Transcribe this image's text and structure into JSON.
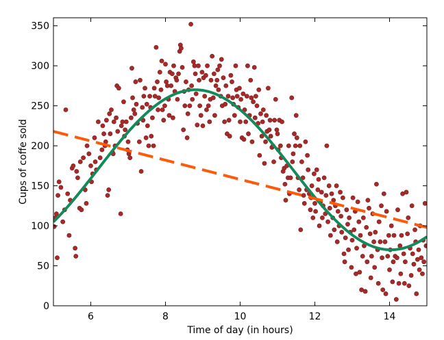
{
  "chart_data": {
    "type": "scatter",
    "title": "",
    "xlabel": "Time of day (in hours)",
    "ylabel": "Cups of coffe sold",
    "xlim": [
      5,
      15
    ],
    "ylim": [
      0,
      360
    ],
    "x_ticks": [
      6,
      8,
      10,
      12,
      14
    ],
    "y_ticks": [
      0,
      50,
      100,
      150,
      200,
      250,
      300,
      350
    ],
    "grid": false,
    "legend": "none",
    "scatter_points": [
      [
        5.02,
        99
      ],
      [
        5.05,
        110
      ],
      [
        5.08,
        115
      ],
      [
        5.1,
        60
      ],
      [
        5.12,
        138
      ],
      [
        5.15,
        155
      ],
      [
        5.2,
        148
      ],
      [
        5.25,
        105
      ],
      [
        5.3,
        120
      ],
      [
        5.33,
        245
      ],
      [
        5.38,
        140
      ],
      [
        5.42,
        88
      ],
      [
        5.45,
        132
      ],
      [
        5.5,
        172
      ],
      [
        5.53,
        175
      ],
      [
        5.58,
        72
      ],
      [
        5.6,
        62
      ],
      [
        5.62,
        168
      ],
      [
        5.65,
        160
      ],
      [
        5.7,
        122
      ],
      [
        5.72,
        180
      ],
      [
        5.75,
        120
      ],
      [
        5.8,
        185
      ],
      [
        5.85,
        145
      ],
      [
        5.88,
        128
      ],
      [
        5.9,
        200
      ],
      [
        5.95,
        190
      ],
      [
        6.0,
        175
      ],
      [
        6.02,
        155
      ],
      [
        6.05,
        165
      ],
      [
        6.1,
        210
      ],
      [
        6.12,
        180
      ],
      [
        6.15,
        170
      ],
      [
        6.2,
        230
      ],
      [
        6.25,
        185
      ],
      [
        6.3,
        195
      ],
      [
        6.32,
        225
      ],
      [
        6.35,
        215
      ],
      [
        6.38,
        200
      ],
      [
        6.4,
        205
      ],
      [
        6.42,
        232
      ],
      [
        6.45,
        138
      ],
      [
        6.48,
        145
      ],
      [
        6.5,
        240
      ],
      [
        6.52,
        215
      ],
      [
        6.55,
        245
      ],
      [
        6.58,
        192
      ],
      [
        6.6,
        190
      ],
      [
        6.62,
        230
      ],
      [
        6.65,
        200
      ],
      [
        6.68,
        235
      ],
      [
        6.7,
        275
      ],
      [
        6.72,
        218
      ],
      [
        6.75,
        272
      ],
      [
        6.8,
        115
      ],
      [
        6.82,
        225
      ],
      [
        6.85,
        230
      ],
      [
        6.88,
        255
      ],
      [
        6.9,
        212
      ],
      [
        6.92,
        220
      ],
      [
        6.95,
        230
      ],
      [
        6.98,
        195
      ],
      [
        7.0,
        205
      ],
      [
        7.02,
        190
      ],
      [
        7.05,
        185
      ],
      [
        7.08,
        235
      ],
      [
        7.1,
        297
      ],
      [
        7.12,
        260
      ],
      [
        7.15,
        245
      ],
      [
        7.18,
        240
      ],
      [
        7.2,
        280
      ],
      [
        7.22,
        252
      ],
      [
        7.25,
        228
      ],
      [
        7.3,
        205
      ],
      [
        7.32,
        282
      ],
      [
        7.35,
        168
      ],
      [
        7.38,
        248
      ],
      [
        7.4,
        232
      ],
      [
        7.42,
        262
      ],
      [
        7.45,
        272
      ],
      [
        7.48,
        210
      ],
      [
        7.5,
        252
      ],
      [
        7.52,
        225
      ],
      [
        7.55,
        200
      ],
      [
        7.58,
        262
      ],
      [
        7.6,
        248
      ],
      [
        7.62,
        212
      ],
      [
        7.65,
        235
      ],
      [
        7.68,
        200
      ],
      [
        7.7,
        272
      ],
      [
        7.72,
        262
      ],
      [
        7.75,
        323
      ],
      [
        7.78,
        280
      ],
      [
        7.8,
        245
      ],
      [
        7.82,
        260
      ],
      [
        7.85,
        292
      ],
      [
        7.88,
        270
      ],
      [
        7.9,
        306
      ],
      [
        7.92,
        245
      ],
      [
        7.95,
        232
      ],
      [
        7.98,
        250
      ],
      [
        8.0,
        302
      ],
      [
        8.02,
        280
      ],
      [
        8.05,
        275
      ],
      [
        8.08,
        258
      ],
      [
        8.1,
        238
      ],
      [
        8.12,
        292
      ],
      [
        8.15,
        275
      ],
      [
        8.18,
        290
      ],
      [
        8.2,
        235
      ],
      [
        8.22,
        300
      ],
      [
        8.25,
        268
      ],
      [
        8.28,
        285
      ],
      [
        8.3,
        282
      ],
      [
        8.32,
        258
      ],
      [
        8.35,
        290
      ],
      [
        8.38,
        318
      ],
      [
        8.4,
        326
      ],
      [
        8.42,
        322
      ],
      [
        8.45,
        298
      ],
      [
        8.48,
        220
      ],
      [
        8.5,
        268
      ],
      [
        8.52,
        250
      ],
      [
        8.55,
        280
      ],
      [
        8.58,
        210
      ],
      [
        8.6,
        240
      ],
      [
        8.62,
        270
      ],
      [
        8.65,
        250
      ],
      [
        8.68,
        352
      ],
      [
        8.7,
        275
      ],
      [
        8.72,
        258
      ],
      [
        8.75,
        305
      ],
      [
        8.78,
        300
      ],
      [
        8.8,
        290
      ],
      [
        8.82,
        265
      ],
      [
        8.85,
        226
      ],
      [
        8.88,
        300
      ],
      [
        8.9,
        282
      ],
      [
        8.92,
        250
      ],
      [
        8.95,
        238
      ],
      [
        8.98,
        292
      ],
      [
        9.0,
        225
      ],
      [
        9.02,
        285
      ],
      [
        9.05,
        262
      ],
      [
        9.08,
        288
      ],
      [
        9.1,
        245
      ],
      [
        9.12,
        300
      ],
      [
        9.15,
        250
      ],
      [
        9.18,
        230
      ],
      [
        9.2,
        258
      ],
      [
        9.22,
        282
      ],
      [
        9.25,
        312
      ],
      [
        9.28,
        260
      ],
      [
        9.3,
        290
      ],
      [
        9.32,
        238
      ],
      [
        9.35,
        275
      ],
      [
        9.38,
        282
      ],
      [
        9.4,
        295
      ],
      [
        9.42,
        270
      ],
      [
        9.45,
        300
      ],
      [
        9.48,
        262
      ],
      [
        9.5,
        308
      ],
      [
        9.52,
        250
      ],
      [
        9.55,
        285
      ],
      [
        9.58,
        230
      ],
      [
        9.6,
        252
      ],
      [
        9.62,
        275
      ],
      [
        9.65,
        215
      ],
      [
        9.68,
        262
      ],
      [
        9.7,
        232
      ],
      [
        9.72,
        212
      ],
      [
        9.75,
        288
      ],
      [
        9.78,
        280
      ],
      [
        9.8,
        260
      ],
      [
        9.82,
        252
      ],
      [
        9.85,
        238
      ],
      [
        9.88,
        300
      ],
      [
        9.9,
        270
      ],
      [
        9.92,
        262
      ],
      [
        9.95,
        248
      ],
      [
        9.98,
        272
      ],
      [
        10.0,
        230
      ],
      [
        10.02,
        258
      ],
      [
        10.05,
        210
      ],
      [
        10.08,
        265
      ],
      [
        10.1,
        208
      ],
      [
        10.12,
        245
      ],
      [
        10.15,
        230
      ],
      [
        10.18,
        262
      ],
      [
        10.2,
        300
      ],
      [
        10.22,
        215
      ],
      [
        10.25,
        238
      ],
      [
        10.28,
        282
      ],
      [
        10.3,
        260
      ],
      [
        10.32,
        205
      ],
      [
        10.35,
        255
      ],
      [
        10.38,
        298
      ],
      [
        10.4,
        235
      ],
      [
        10.42,
        262
      ],
      [
        10.45,
        250
      ],
      [
        10.48,
        228
      ],
      [
        10.5,
        270
      ],
      [
        10.52,
        188
      ],
      [
        10.55,
        240
      ],
      [
        10.58,
        212
      ],
      [
        10.6,
        230
      ],
      [
        10.62,
        245
      ],
      [
        10.65,
        178
      ],
      [
        10.68,
        205
      ],
      [
        10.7,
        238
      ],
      [
        10.72,
        218
      ],
      [
        10.75,
        272
      ],
      [
        10.78,
        220
      ],
      [
        10.8,
        232
      ],
      [
        10.82,
        212
      ],
      [
        10.85,
        198
      ],
      [
        10.88,
        200
      ],
      [
        10.9,
        180
      ],
      [
        10.92,
        232
      ],
      [
        10.95,
        258
      ],
      [
        10.98,
        220
      ],
      [
        11.0,
        215
      ],
      [
        11.02,
        195
      ],
      [
        11.05,
        232
      ],
      [
        11.08,
        200
      ],
      [
        11.1,
        185
      ],
      [
        11.12,
        230
      ],
      [
        11.15,
        168
      ],
      [
        11.18,
        172
      ],
      [
        11.2,
        152
      ],
      [
        11.22,
        132
      ],
      [
        11.25,
        175
      ],
      [
        11.28,
        160
      ],
      [
        11.3,
        200
      ],
      [
        11.32,
        140
      ],
      [
        11.35,
        160
      ],
      [
        11.38,
        260
      ],
      [
        11.4,
        180
      ],
      [
        11.42,
        190
      ],
      [
        11.45,
        215
      ],
      [
        11.48,
        200
      ],
      [
        11.5,
        238
      ],
      [
        11.52,
        210
      ],
      [
        11.55,
        160
      ],
      [
        11.58,
        145
      ],
      [
        11.6,
        200
      ],
      [
        11.62,
        95
      ],
      [
        11.65,
        180
      ],
      [
        11.68,
        160
      ],
      [
        11.7,
        138
      ],
      [
        11.72,
        128
      ],
      [
        11.75,
        205
      ],
      [
        11.78,
        145
      ],
      [
        11.8,
        188
      ],
      [
        11.82,
        170
      ],
      [
        11.85,
        140
      ],
      [
        11.88,
        120
      ],
      [
        11.9,
        135
      ],
      [
        11.92,
        150
      ],
      [
        11.95,
        110
      ],
      [
        11.98,
        165
      ],
      [
        12.0,
        128
      ],
      [
        12.02,
        118
      ],
      [
        12.05,
        170
      ],
      [
        12.08,
        145
      ],
      [
        12.1,
        158
      ],
      [
        12.12,
        100
      ],
      [
        12.15,
        130
      ],
      [
        12.18,
        142
      ],
      [
        12.2,
        110
      ],
      [
        12.22,
        125
      ],
      [
        12.25,
        160
      ],
      [
        12.28,
        115
      ],
      [
        12.3,
        138
      ],
      [
        12.32,
        200
      ],
      [
        12.35,
        105
      ],
      [
        12.38,
        150
      ],
      [
        12.4,
        122
      ],
      [
        12.42,
        88
      ],
      [
        12.45,
        140
      ],
      [
        12.48,
        110
      ],
      [
        12.5,
        132
      ],
      [
        12.52,
        95
      ],
      [
        12.55,
        125
      ],
      [
        12.58,
        150
      ],
      [
        12.6,
        80
      ],
      [
        12.62,
        118
      ],
      [
        12.65,
        100
      ],
      [
        12.68,
        142
      ],
      [
        12.7,
        112
      ],
      [
        12.72,
        92
      ],
      [
        12.75,
        135
      ],
      [
        12.78,
        65
      ],
      [
        12.8,
        55
      ],
      [
        12.82,
        85
      ],
      [
        12.85,
        120
      ],
      [
        12.88,
        102
      ],
      [
        12.9,
        70
      ],
      [
        12.92,
        110
      ],
      [
        12.95,
        92
      ],
      [
        12.98,
        48
      ],
      [
        13.0,
        82
      ],
      [
        13.02,
        135
      ],
      [
        13.05,
        95
      ],
      [
        13.08,
        118
      ],
      [
        13.1,
        40
      ],
      [
        13.12,
        72
      ],
      [
        13.15,
        130
      ],
      [
        13.18,
        105
      ],
      [
        13.2,
        42
      ],
      [
        13.22,
        88
      ],
      [
        13.25,
        20
      ],
      [
        13.28,
        62
      ],
      [
        13.3,
        110
      ],
      [
        13.32,
        75
      ],
      [
        13.35,
        18
      ],
      [
        13.38,
        98
      ],
      [
        13.4,
        55
      ],
      [
        13.42,
        132
      ],
      [
        13.45,
        122
      ],
      [
        13.48,
        90
      ],
      [
        13.5,
        35
      ],
      [
        13.52,
        62
      ],
      [
        13.55,
        115
      ],
      [
        13.58,
        80
      ],
      [
        13.6,
        48
      ],
      [
        13.62,
        92
      ],
      [
        13.65,
        152
      ],
      [
        13.68,
        70
      ],
      [
        13.7,
        28
      ],
      [
        13.72,
        105
      ],
      [
        13.75,
        80
      ],
      [
        13.78,
        125
      ],
      [
        13.8,
        60
      ],
      [
        13.82,
        20
      ],
      [
        13.85,
        140
      ],
      [
        13.88,
        80
      ],
      [
        13.9,
        15
      ],
      [
        13.92,
        118
      ],
      [
        13.95,
        62
      ],
      [
        13.98,
        88
      ],
      [
        14.0,
        45
      ],
      [
        14.02,
        70
      ],
      [
        14.05,
        100
      ],
      [
        14.08,
        30
      ],
      [
        14.1,
        55
      ],
      [
        14.12,
        88
      ],
      [
        14.15,
        62
      ],
      [
        14.18,
        8
      ],
      [
        14.2,
        60
      ],
      [
        14.22,
        120
      ],
      [
        14.25,
        28
      ],
      [
        14.28,
        75
      ],
      [
        14.3,
        40
      ],
      [
        14.32,
        88
      ],
      [
        14.35,
        140
      ],
      [
        14.38,
        65
      ],
      [
        14.4,
        28
      ],
      [
        14.42,
        55
      ],
      [
        14.45,
        142
      ],
      [
        14.48,
        90
      ],
      [
        14.5,
        110
      ],
      [
        14.52,
        25
      ],
      [
        14.55,
        72
      ],
      [
        14.58,
        38
      ],
      [
        14.6,
        125
      ],
      [
        14.62,
        65
      ],
      [
        14.65,
        52
      ],
      [
        14.68,
        95
      ],
      [
        14.7,
        80
      ],
      [
        14.72,
        15
      ],
      [
        14.75,
        58
      ],
      [
        14.78,
        70
      ],
      [
        14.8,
        45
      ],
      [
        14.82,
        100
      ],
      [
        14.85,
        60
      ],
      [
        14.88,
        40
      ],
      [
        14.9,
        82
      ],
      [
        14.92,
        55
      ],
      [
        14.95,
        128
      ],
      [
        14.98,
        75
      ]
    ],
    "model_curve": {
      "equation": "y = 170 + 100*sin(0.6*(x-6.18))"
    },
    "trend_line": {
      "points": [
        [
          5,
          218
        ],
        [
          15,
          98
        ]
      ]
    },
    "colors": {
      "points": "#a52a2a",
      "points_edge": "#7f1d1d",
      "curve": "#128a5a",
      "trend": "#ff5a0a",
      "axes": "#000000",
      "background": "#ffffff"
    }
  }
}
